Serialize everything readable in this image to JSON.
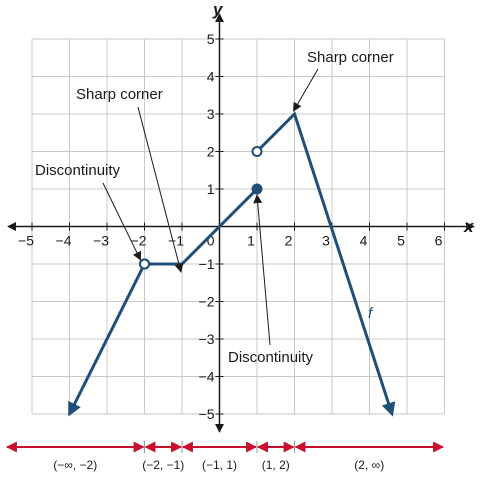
{
  "chart_data": {
    "type": "line",
    "xlabel": "x",
    "ylabel": "y",
    "xlim": [
      -5,
      6
    ],
    "ylim": [
      -5,
      5
    ],
    "x_ticks": [
      "−5",
      "−4",
      "−3",
      "−2",
      "−1",
      "0",
      "1",
      "2",
      "3",
      "4",
      "5",
      "6"
    ],
    "y_ticks": [
      "5",
      "4",
      "3",
      "2",
      "1",
      "0",
      "−1",
      "−2",
      "−3",
      "−4",
      "−5"
    ],
    "grid": true,
    "function_label": "f",
    "series": [
      {
        "name": "f",
        "color": "#1f4e79",
        "segments": [
          {
            "points": [
              [
                -4,
                -5
              ],
              [
                -2,
                -1
              ]
            ],
            "start_arrow": true,
            "end_marker": "open"
          },
          {
            "points": [
              [
                -2,
                -1
              ],
              [
                -1,
                -1
              ],
              [
                1,
                1
              ]
            ],
            "start_marker": "open",
            "end_marker": "closed"
          },
          {
            "points": [
              [
                1,
                2
              ],
              [
                2,
                3
              ],
              [
                4.6,
                -5
              ]
            ],
            "start_marker": "open",
            "end_arrow": true
          }
        ]
      }
    ],
    "annotations": [
      {
        "text": "Sharp corner",
        "target": [
          2,
          3
        ]
      },
      {
        "text": "Sharp corner",
        "target": [
          -1,
          -1
        ]
      },
      {
        "text": "Discontinuity",
        "target": [
          -2,
          -1
        ]
      },
      {
        "text": "Discontinuity",
        "target": [
          1,
          1
        ]
      }
    ],
    "interval_colors": {
      "number_line": "#c8102e",
      "curve": "#1f4e79"
    },
    "intervals": [
      "(−∞, −2)",
      "(−2, −1)",
      "(−1, 1)",
      "(1, 2)",
      "(2, ∞)"
    ]
  }
}
